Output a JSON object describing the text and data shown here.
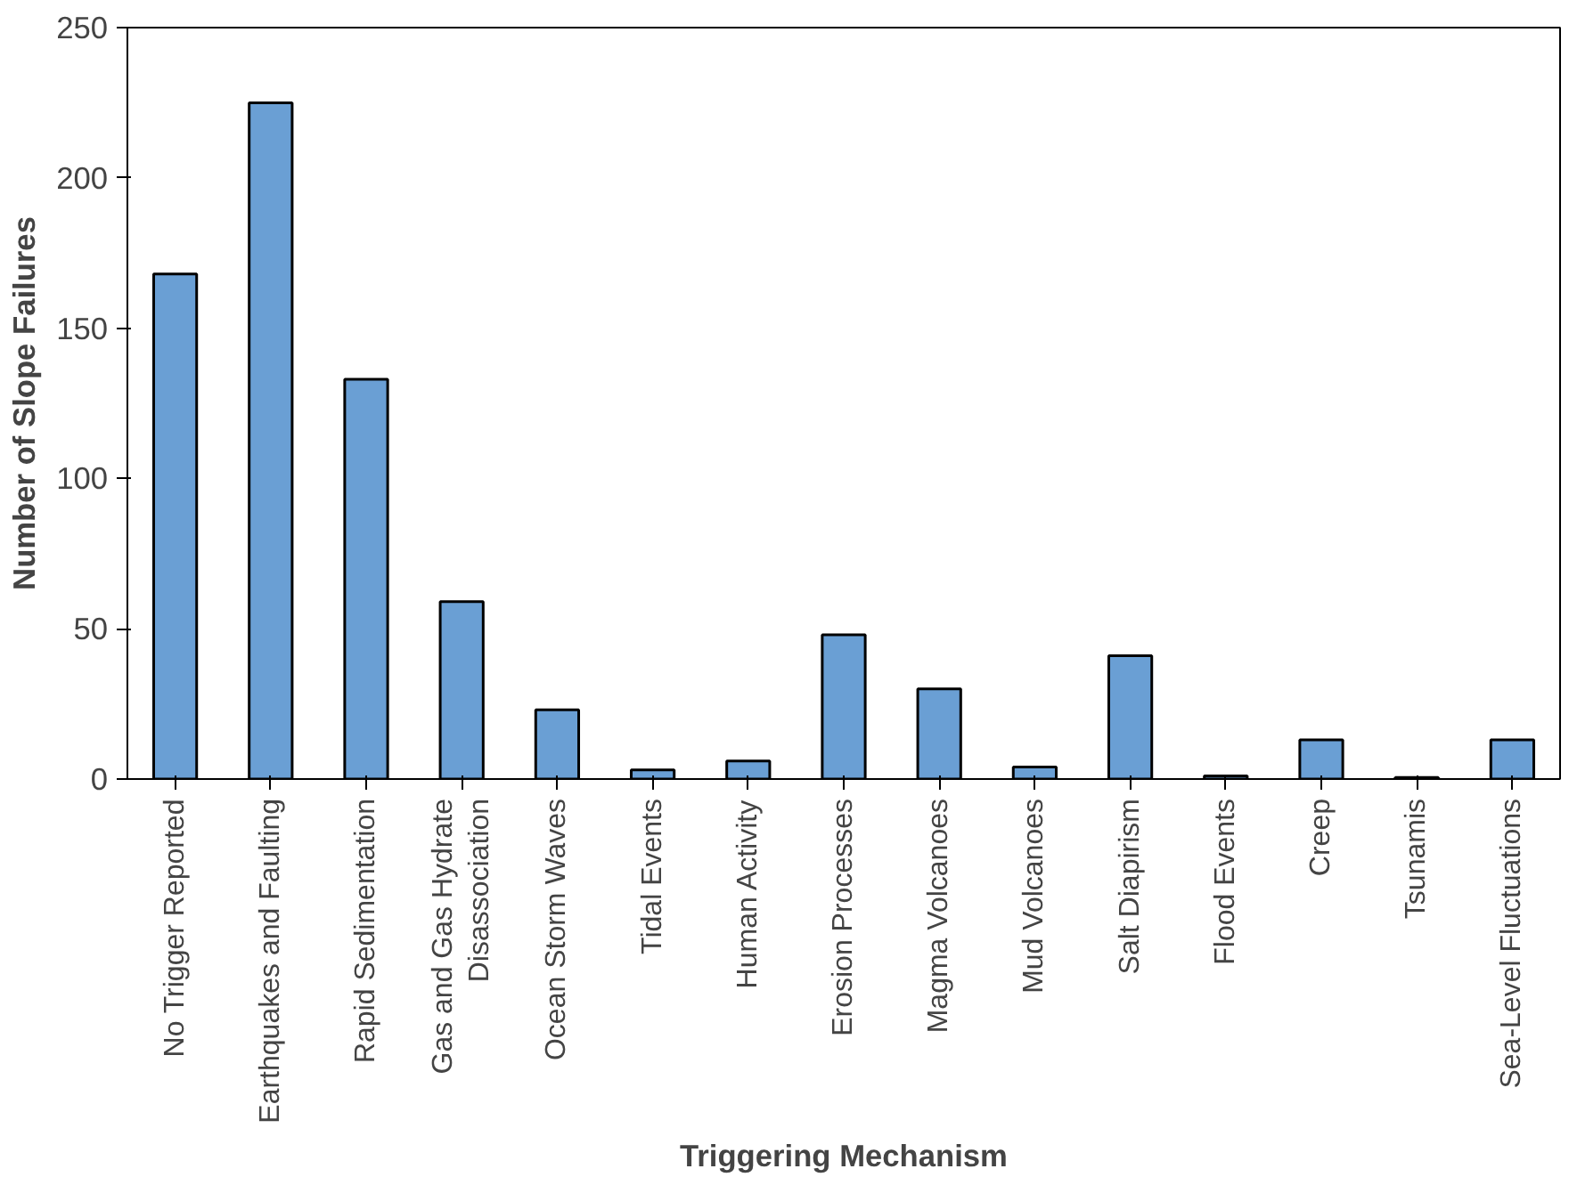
{
  "chart_data": {
    "type": "bar",
    "xlabel": "Triggering Mechanism",
    "ylabel": "Number of Slope Failures",
    "categories": [
      "No Trigger Reported",
      "Earthquakes and Faulting",
      "Rapid Sedimentation",
      "Gas and Gas Hydrate\nDisassociation",
      "Ocean Storm Waves",
      "Tidal Events",
      "Human Activity",
      "Erosion Processes",
      "Magma Volcanoes",
      "Mud Volcanoes",
      "Salt Diapirism",
      "Flood Events",
      "Creep",
      "Tsunamis",
      "Sea-Level Fluctuations"
    ],
    "values": [
      168,
      225,
      133,
      59,
      23,
      3,
      6,
      48,
      30,
      4,
      41,
      1,
      13,
      0.5,
      13
    ],
    "color": "#6a9fd4",
    "ylim": [
      0,
      250
    ],
    "yticks": [
      0,
      50,
      100,
      150,
      200,
      250
    ],
    "grid": false
  }
}
